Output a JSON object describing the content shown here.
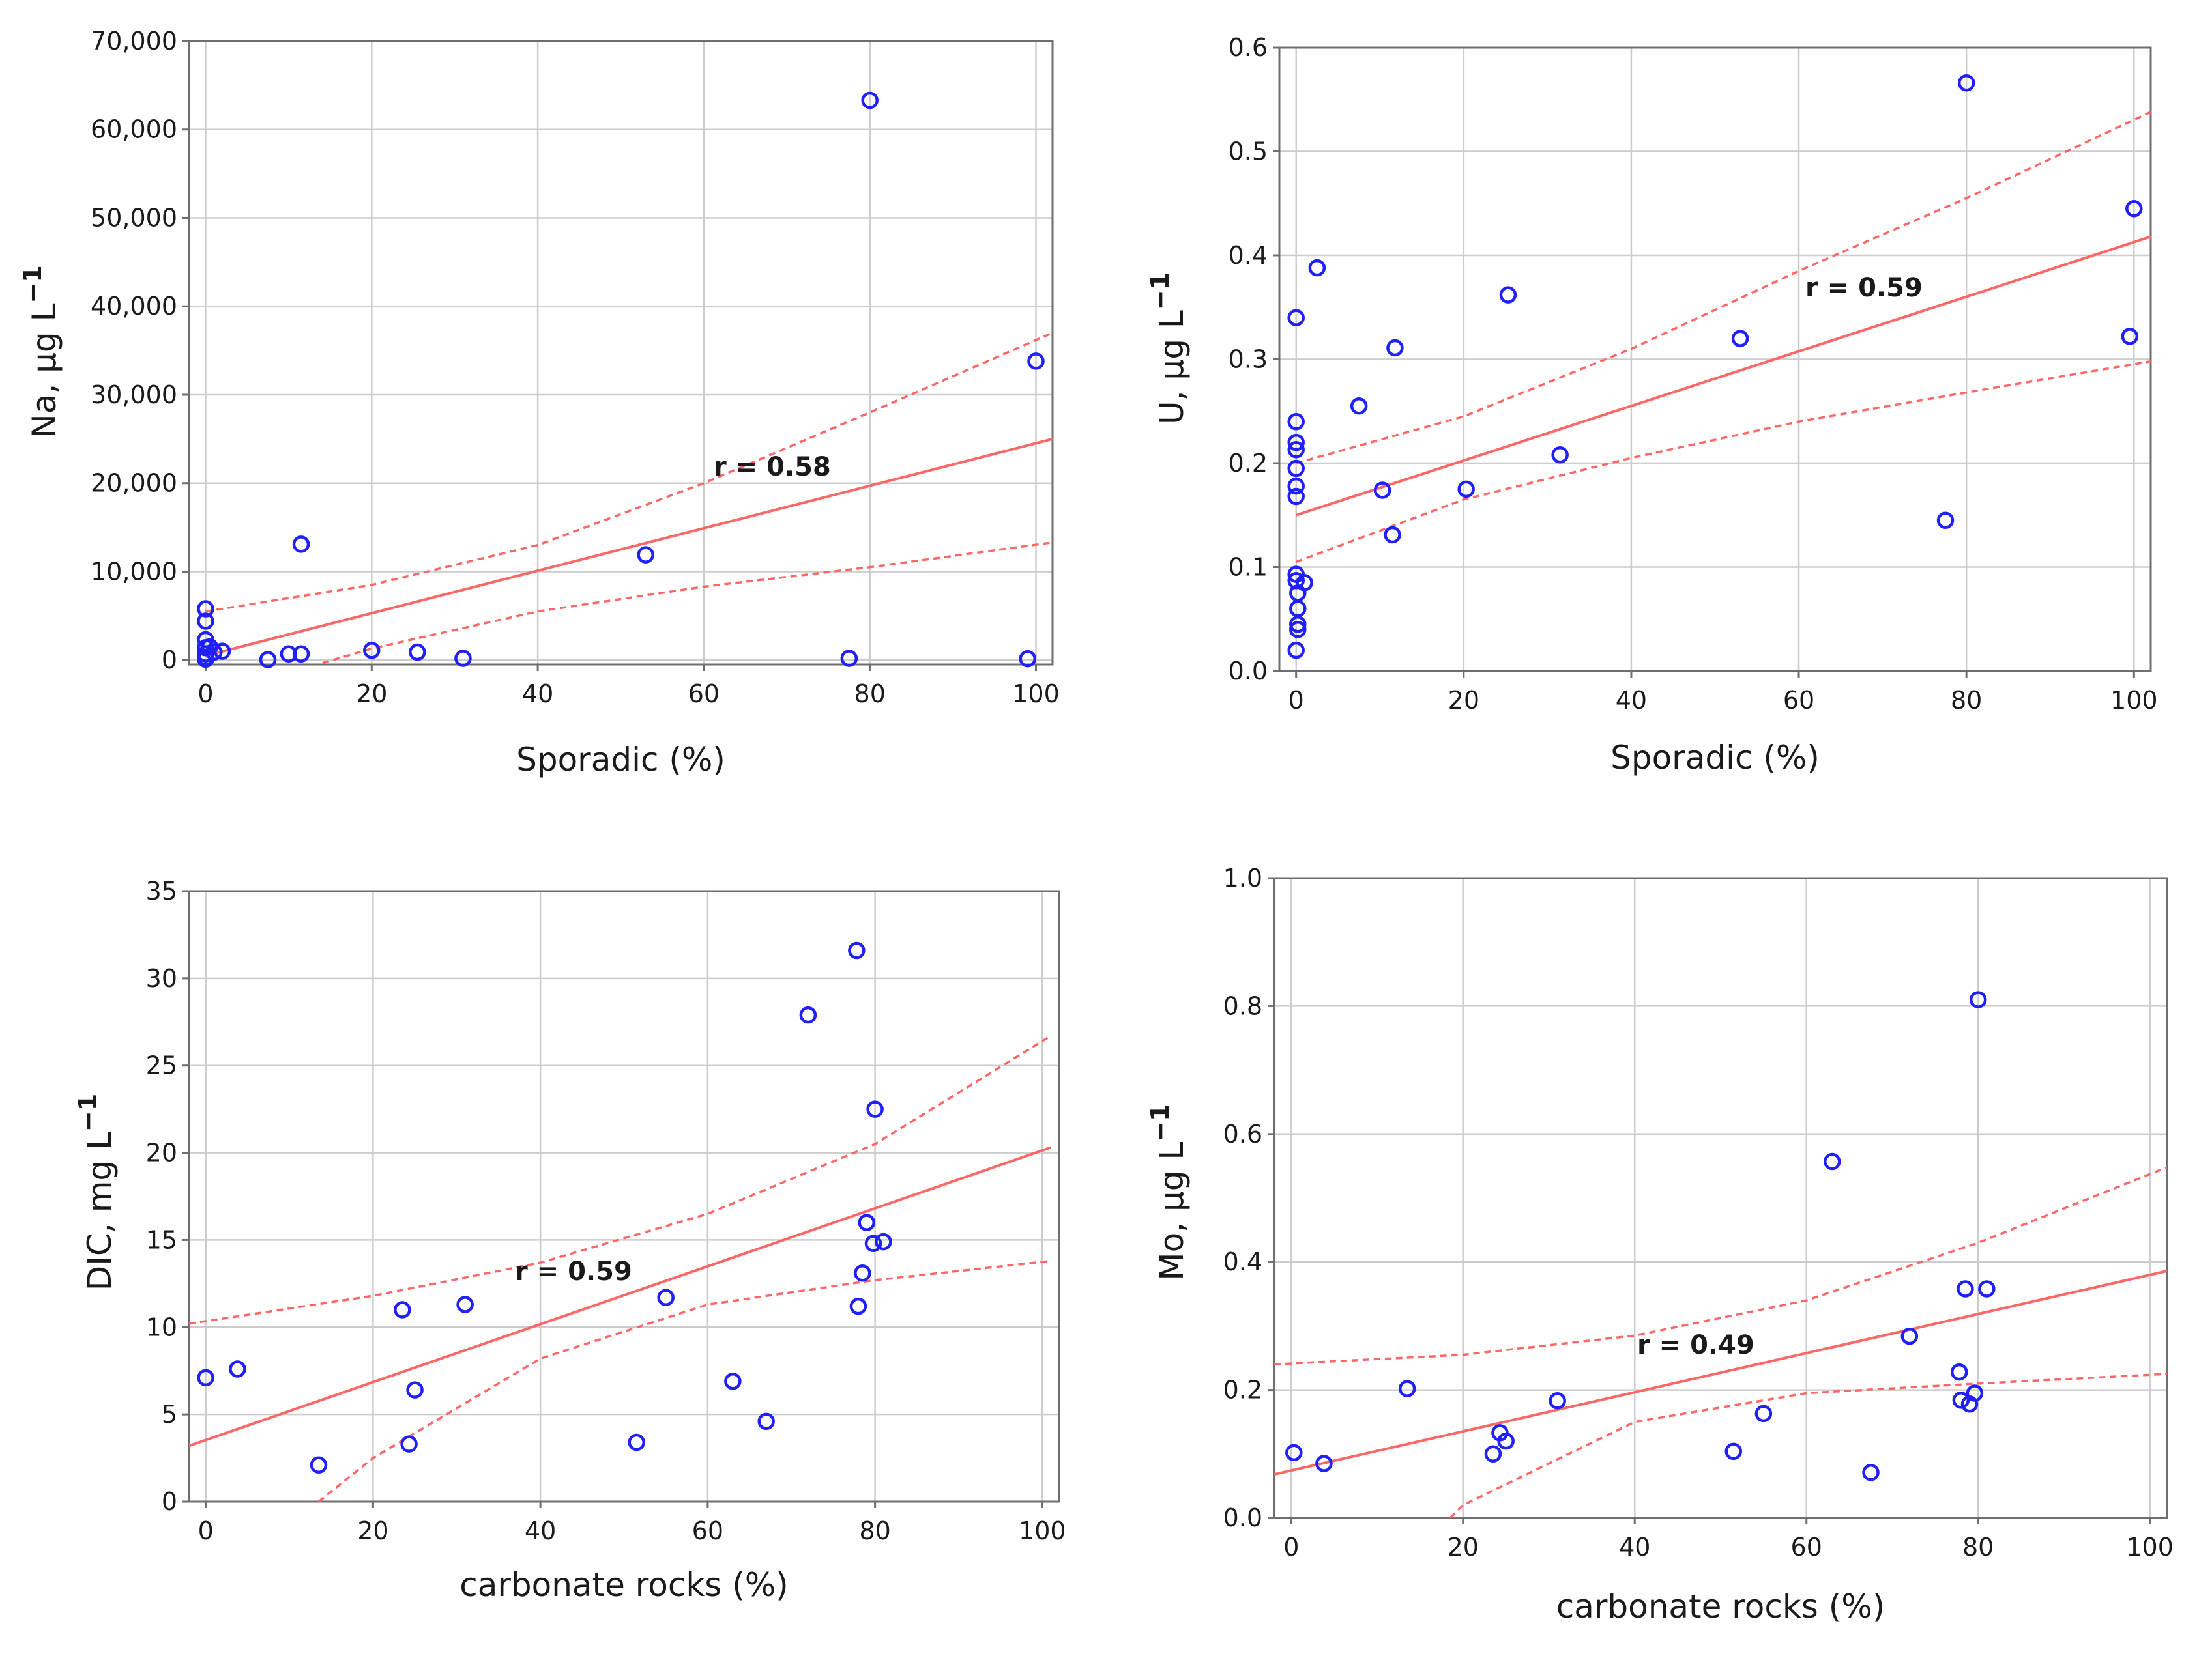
{
  "colors": {
    "points": "#1f1fff",
    "fit": "#ff6666"
  },
  "chart_data": [
    {
      "type": "scatter",
      "xlabel": "Sporadic (%)",
      "ylabel": {
        "main": "Na, µg L",
        "sup": "−1"
      },
      "annotation": "r = 0.58",
      "xlim": [
        -2,
        102
      ],
      "ylim": [
        -500,
        70000
      ],
      "xticks": [
        0,
        20,
        40,
        60,
        80,
        100
      ],
      "xtick_labels": [
        "0",
        "20",
        "40",
        "60",
        "80",
        "100"
      ],
      "yticks": [
        0,
        10000,
        20000,
        30000,
        40000,
        50000,
        60000,
        70000
      ],
      "ytick_labels": [
        "0",
        "10,000",
        "20,000",
        "30,000",
        "40,000",
        "50,000",
        "60,000",
        "70,000"
      ],
      "grid": true,
      "points": [
        [
          0,
          5800
        ],
        [
          0,
          4400
        ],
        [
          0,
          2300
        ],
        [
          0,
          1400
        ],
        [
          0,
          700
        ],
        [
          0,
          300
        ],
        [
          0,
          100
        ],
        [
          0.5,
          1500
        ],
        [
          1,
          900
        ],
        [
          2,
          1000
        ],
        [
          7.5,
          50
        ],
        [
          10,
          700
        ],
        [
          11.5,
          700
        ],
        [
          11.5,
          13100
        ],
        [
          20,
          1100
        ],
        [
          25.5,
          900
        ],
        [
          31,
          200
        ],
        [
          53,
          11900
        ],
        [
          77.5,
          200
        ],
        [
          80,
          63300
        ],
        [
          99,
          150
        ],
        [
          100,
          33800
        ]
      ],
      "fit": {
        "x": [
          0,
          102
        ],
        "y": [
          500,
          25000
        ]
      },
      "ci_upper": {
        "x": [
          0,
          20,
          40,
          60,
          80,
          102
        ],
        "y": [
          5500,
          8500,
          13000,
          20000,
          28000,
          37000
        ]
      },
      "ci_lower": {
        "x": [
          0,
          20,
          40,
          60,
          80,
          102
        ],
        "y": [
          -4200,
          1300,
          5500,
          8300,
          10500,
          13300
        ]
      }
    },
    {
      "type": "scatter",
      "xlabel": "Sporadic (%)",
      "ylabel": {
        "main": "U, µg L",
        "sup": "−1"
      },
      "annotation": "r = 0.59",
      "xlim": [
        -2,
        102
      ],
      "ylim": [
        0,
        0.6
      ],
      "xticks": [
        0,
        20,
        40,
        60,
        80,
        100
      ],
      "xtick_labels": [
        "0",
        "20",
        "40",
        "60",
        "80",
        "100"
      ],
      "yticks": [
        0,
        0.1,
        0.2,
        0.3,
        0.4,
        0.5,
        0.6
      ],
      "ytick_labels": [
        "0.0",
        "0.1",
        "0.2",
        "0.3",
        "0.4",
        "0.5",
        "0.6"
      ],
      "grid": true,
      "points": [
        [
          0,
          0.34
        ],
        [
          0,
          0.24
        ],
        [
          0,
          0.22
        ],
        [
          0,
          0.213
        ],
        [
          0,
          0.195
        ],
        [
          0,
          0.178
        ],
        [
          0,
          0.168
        ],
        [
          0,
          0.093
        ],
        [
          0,
          0.087
        ],
        [
          0.2,
          0.075
        ],
        [
          0.2,
          0.06
        ],
        [
          0.2,
          0.045
        ],
        [
          0.2,
          0.04
        ],
        [
          0,
          0.02
        ],
        [
          1,
          0.085
        ],
        [
          2.5,
          0.388
        ],
        [
          7.5,
          0.255
        ],
        [
          10.3,
          0.174
        ],
        [
          11.5,
          0.131
        ],
        [
          11.8,
          0.311
        ],
        [
          20.3,
          0.175
        ],
        [
          25.3,
          0.362
        ],
        [
          31.5,
          0.208
        ],
        [
          53,
          0.32
        ],
        [
          77.5,
          0.145
        ],
        [
          80,
          0.566
        ],
        [
          99.5,
          0.322
        ],
        [
          100,
          0.445
        ]
      ],
      "fit": {
        "x": [
          0,
          102
        ],
        "y": [
          0.15,
          0.418
        ]
      },
      "ci_upper": {
        "x": [
          0,
          20,
          40,
          60,
          80,
          102
        ],
        "y": [
          0.2,
          0.245,
          0.31,
          0.385,
          0.455,
          0.538
        ]
      },
      "ci_lower": {
        "x": [
          0,
          20,
          40,
          60,
          80,
          102
        ],
        "y": [
          0.105,
          0.165,
          0.205,
          0.24,
          0.268,
          0.298
        ]
      }
    },
    {
      "type": "scatter",
      "xlabel": "carbonate rocks (%)",
      "ylabel": {
        "main": "DIC, mg L",
        "sup": "−1"
      },
      "annotation": "r = 0.59",
      "xlim": [
        -2,
        102
      ],
      "ylim": [
        0,
        35
      ],
      "xticks": [
        0,
        20,
        40,
        60,
        80,
        100
      ],
      "xtick_labels": [
        "0",
        "20",
        "40",
        "60",
        "80",
        "100"
      ],
      "yticks": [
        0,
        5,
        10,
        15,
        20,
        25,
        30,
        35
      ],
      "ytick_labels": [
        "0",
        "5",
        "10",
        "15",
        "20",
        "25",
        "30",
        "35"
      ],
      "grid": true,
      "points": [
        [
          0,
          7.1
        ],
        [
          3.8,
          7.6
        ],
        [
          13.5,
          2.1
        ],
        [
          23.5,
          11
        ],
        [
          24.3,
          3.3
        ],
        [
          25,
          6.4
        ],
        [
          31,
          11.3
        ],
        [
          51.5,
          3.4
        ],
        [
          55,
          11.7
        ],
        [
          63,
          6.9
        ],
        [
          67,
          4.6
        ],
        [
          72,
          27.9
        ],
        [
          77.8,
          31.6
        ],
        [
          78,
          11.2
        ],
        [
          78.5,
          13.1
        ],
        [
          79,
          16
        ],
        [
          79.8,
          14.8
        ],
        [
          80,
          22.5
        ],
        [
          81,
          14.9
        ]
      ],
      "fit": {
        "x": [
          -2,
          101
        ],
        "y": [
          3.2,
          20.3
        ]
      },
      "ci_upper": {
        "x": [
          -2,
          20,
          40,
          60,
          80,
          101
        ],
        "y": [
          10.2,
          11.8,
          13.7,
          16.5,
          20.5,
          26.7
        ]
      },
      "ci_lower": {
        "x": [
          13.5,
          20,
          40,
          60,
          80,
          101
        ],
        "y": [
          0,
          2.5,
          8.2,
          11.3,
          12.7,
          13.8
        ]
      }
    },
    {
      "type": "scatter",
      "xlabel": "carbonate rocks (%)",
      "ylabel": {
        "main": "Mo, µg L",
        "sup": "−1"
      },
      "annotation": "r = 0.49",
      "xlim": [
        -2,
        102
      ],
      "ylim": [
        0,
        1.0
      ],
      "xticks": [
        0,
        20,
        40,
        60,
        80,
        100
      ],
      "xtick_labels": [
        "0",
        "20",
        "40",
        "60",
        "80",
        "100"
      ],
      "yticks": [
        0,
        0.2,
        0.4,
        0.6,
        0.8,
        1.0
      ],
      "ytick_labels": [
        "0.0",
        "0.2",
        "0.4",
        "0.6",
        "0.8",
        "1.0"
      ],
      "grid": true,
      "points": [
        [
          0.3,
          0.102
        ],
        [
          3.8,
          0.085
        ],
        [
          13.5,
          0.202
        ],
        [
          23.5,
          0.1
        ],
        [
          24.3,
          0.133
        ],
        [
          25,
          0.12
        ],
        [
          31,
          0.183
        ],
        [
          51.5,
          0.104
        ],
        [
          55,
          0.163
        ],
        [
          63,
          0.557
        ],
        [
          67.5,
          0.071
        ],
        [
          72,
          0.284
        ],
        [
          77.8,
          0.228
        ],
        [
          78,
          0.184
        ],
        [
          78.5,
          0.358
        ],
        [
          79,
          0.178
        ],
        [
          79.6,
          0.195
        ],
        [
          80,
          0.81
        ],
        [
          81,
          0.358
        ]
      ],
      "fit": {
        "x": [
          -2,
          102
        ],
        "y": [
          0.068,
          0.386
        ]
      },
      "ci_upper": {
        "x": [
          -2,
          20,
          40,
          60,
          80,
          102
        ],
        "y": [
          0.24,
          0.255,
          0.285,
          0.34,
          0.43,
          0.548
        ]
      },
      "ci_lower": {
        "x": [
          18.5,
          20,
          40,
          60,
          80,
          102
        ],
        "y": [
          0,
          0.02,
          0.15,
          0.195,
          0.21,
          0.225
        ]
      }
    }
  ]
}
